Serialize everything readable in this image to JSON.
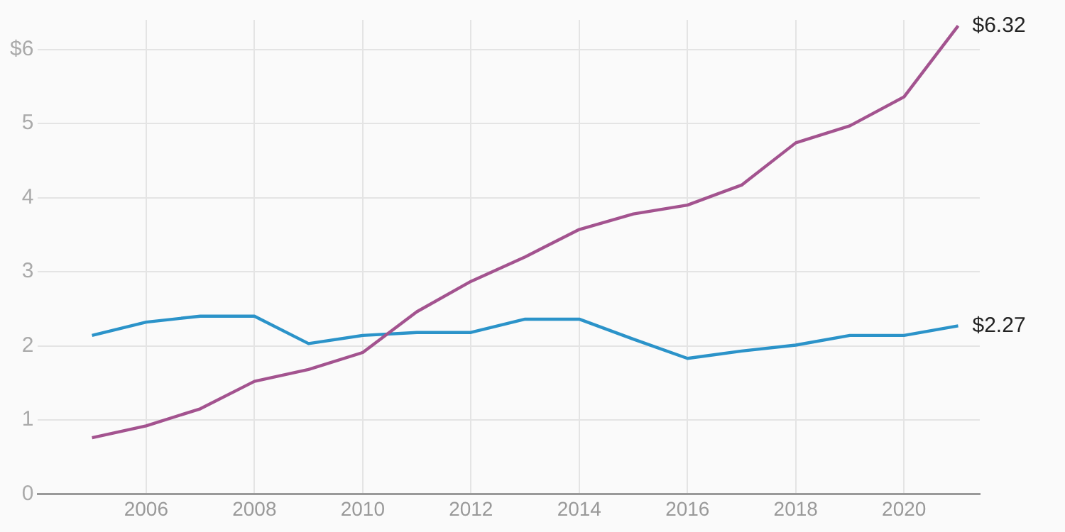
{
  "chart_data": {
    "type": "line",
    "x": [
      2005,
      2006,
      2007,
      2008,
      2009,
      2010,
      2011,
      2012,
      2013,
      2014,
      2015,
      2016,
      2017,
      2018,
      2019,
      2020,
      2021
    ],
    "series": [
      {
        "color": "#a3538f",
        "values": [
          0.76,
          0.92,
          1.15,
          1.52,
          1.68,
          1.91,
          2.46,
          2.87,
          3.2,
          3.57,
          3.78,
          3.9,
          4.17,
          4.74,
          4.97,
          5.36,
          6.32
        ]
      },
      {
        "color": "#2b93c9",
        "values": [
          2.14,
          2.32,
          2.4,
          2.4,
          2.03,
          2.14,
          2.18,
          2.18,
          2.36,
          2.36,
          2.09,
          1.83,
          1.93,
          2.01,
          2.14,
          2.14,
          2.27
        ]
      }
    ],
    "xlim": [
      2004,
      2021.4
    ],
    "xticks": [
      2006,
      2008,
      2010,
      2012,
      2014,
      2016,
      2018,
      2020
    ],
    "ylim": [
      0,
      6.4
    ],
    "yticks": [
      0,
      1,
      2,
      3,
      4,
      5,
      {
        "value": 6,
        "label": "$6"
      }
    ],
    "annotations": [
      {
        "text": "$6.32",
        "x": 2021,
        "y": 6.32
      },
      {
        "text": "$2.27",
        "x": 2021,
        "y": 2.27
      }
    ],
    "grid": true,
    "legend": false,
    "marker": "none",
    "line_style": "solid"
  }
}
